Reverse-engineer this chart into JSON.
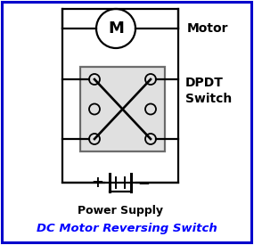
{
  "bg_color": "#ffffff",
  "border_color": "#0000cc",
  "line_color": "#000000",
  "title": "DC Motor Reversing Switch",
  "title_color": "#0000ff",
  "title_fontsize": 9.5,
  "motor_label": "Motor",
  "switch_label_line1": "DPDT",
  "switch_label_line2": "Switch",
  "supply_label": "Power Supply",
  "lw": 1.6
}
